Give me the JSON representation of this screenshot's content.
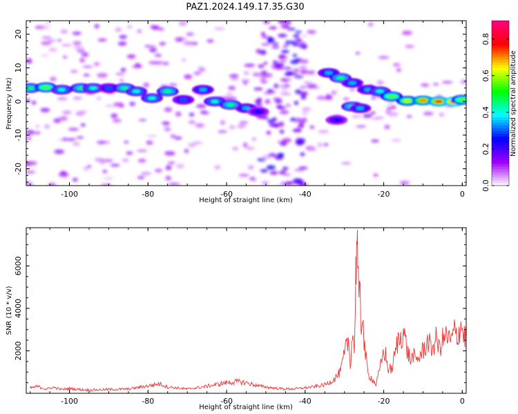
{
  "title": "PAZ1.2024.149.17.35.G30",
  "chart_data": [
    {
      "type": "heatmap",
      "title": "PAZ1.2024.149.17.35.G30",
      "xlabel": "Height of straight line (km)",
      "ylabel": "Frequency (Hz)",
      "xlim": [
        -111,
        1
      ],
      "ylim": [
        -25,
        24
      ],
      "xticks": [
        -100,
        -80,
        -60,
        -40,
        -20,
        0
      ],
      "yticks": [
        -20,
        -10,
        0,
        10,
        20
      ],
      "colorbar": {
        "label": "Normalized spectral amplitude",
        "range": [
          0.0,
          0.9
        ],
        "ticks": [
          0.0,
          0.2,
          0.4,
          0.6,
          0.8
        ],
        "colors": [
          "#ffffff",
          "#a000ff",
          "#0000ff",
          "#00ffff",
          "#00ff00",
          "#ffff00",
          "#ff0000",
          "#ff0080"
        ]
      },
      "ridge": [
        {
          "x": -110,
          "freq": 4.0,
          "amp": 0.45
        },
        {
          "x": -106,
          "freq": 4.2,
          "amp": 0.55
        },
        {
          "x": -102,
          "freq": 3.5,
          "amp": 0.4
        },
        {
          "x": -97,
          "freq": 4.0,
          "amp": 0.45
        },
        {
          "x": -94,
          "freq": 4.0,
          "amp": 0.4
        },
        {
          "x": -90,
          "freq": 4.0,
          "amp": 0.3
        },
        {
          "x": -86,
          "freq": 4.0,
          "amp": 0.45
        },
        {
          "x": -83,
          "freq": 3.0,
          "amp": 0.4
        },
        {
          "x": -79,
          "freq": 1.0,
          "amp": 0.4
        },
        {
          "x": -75,
          "freq": 3.0,
          "amp": 0.45
        },
        {
          "x": -71,
          "freq": 0.5,
          "amp": 0.3
        },
        {
          "x": -66,
          "freq": 3.5,
          "amp": 0.35
        },
        {
          "x": -63,
          "freq": 0.0,
          "amp": 0.4
        },
        {
          "x": -59,
          "freq": -1.0,
          "amp": 0.45
        },
        {
          "x": -55,
          "freq": -2.0,
          "amp": 0.35
        },
        {
          "x": -52,
          "freq": -3.0,
          "amp": 0.25
        },
        {
          "x": -34,
          "freq": 8.5,
          "amp": 0.35
        },
        {
          "x": -31,
          "freq": 7.0,
          "amp": 0.45
        },
        {
          "x": -28,
          "freq": 5.5,
          "amp": 0.35
        },
        {
          "x": -24,
          "freq": 3.5,
          "amp": 0.35
        },
        {
          "x": -21,
          "freq": 3.0,
          "amp": 0.4
        },
        {
          "x": -18,
          "freq": 1.5,
          "amp": 0.55
        },
        {
          "x": -14,
          "freq": 0.2,
          "amp": 0.6
        },
        {
          "x": -10,
          "freq": 0.3,
          "amp": 0.7
        },
        {
          "x": -6,
          "freq": 0.0,
          "amp": 0.75
        },
        {
          "x": -2,
          "freq": 0.0,
          "amp": 0.8
        },
        {
          "x": 0,
          "freq": 0.5,
          "amp": 0.55
        }
      ],
      "branch": [
        {
          "x": -28,
          "freq": -1.5,
          "amp": 0.45
        },
        {
          "x": -26,
          "freq": -2.0,
          "amp": 0.35
        },
        {
          "x": -32,
          "freq": -5.5,
          "amp": 0.25
        }
      ]
    },
    {
      "type": "line",
      "xlabel": "Height of straight line (km)",
      "ylabel": "SNR (10 * v/v)",
      "xlim": [
        -111,
        1
      ],
      "ylim": [
        0,
        7800
      ],
      "xticks": [
        -100,
        -80,
        -60,
        -40,
        -20,
        0
      ],
      "yticks": [
        2000,
        4000,
        6000
      ],
      "color": "#ee3333",
      "series": [
        {
          "points": [
            [
              -110,
              250
            ],
            [
              -108,
              320
            ],
            [
              -106,
              200
            ],
            [
              -104,
              280
            ],
            [
              -102,
              180
            ],
            [
              -100,
              220
            ],
            [
              -95,
              150
            ],
            [
              -90,
              180
            ],
            [
              -85,
              200
            ],
            [
              -80,
              350
            ],
            [
              -77,
              450
            ],
            [
              -75,
              300
            ],
            [
              -70,
              200
            ],
            [
              -66,
              300
            ],
            [
              -63,
              400
            ],
            [
              -60,
              500
            ],
            [
              -57,
              550
            ],
            [
              -55,
              500
            ],
            [
              -52,
              350
            ],
            [
              -48,
              250
            ],
            [
              -45,
              200
            ],
            [
              -42,
              220
            ],
            [
              -38,
              300
            ],
            [
              -35,
              400
            ],
            [
              -33,
              600
            ],
            [
              -31,
              1000
            ],
            [
              -30,
              1800
            ],
            [
              -29,
              2500
            ],
            [
              -28.5,
              1300
            ],
            [
              -28,
              3000
            ],
            [
              -27.5,
              2000
            ],
            [
              -27.2,
              4500
            ],
            [
              -27,
              6500
            ],
            [
              -26.8,
              7800
            ],
            [
              -26.6,
              5800
            ],
            [
              -26.3,
              3800
            ],
            [
              -26,
              4900
            ],
            [
              -25.7,
              2900
            ],
            [
              -25.4,
              4300
            ],
            [
              -25,
              2300
            ],
            [
              -24.5,
              1600
            ],
            [
              -24,
              900
            ],
            [
              -23,
              700
            ],
            [
              -22,
              400
            ],
            [
              -21,
              1100
            ],
            [
              -20,
              2000
            ],
            [
              -19.5,
              1800
            ],
            [
              -19,
              1200
            ],
            [
              -18,
              1100
            ],
            [
              -17.5,
              1500
            ],
            [
              -16.5,
              2400
            ],
            [
              -15.5,
              2700
            ],
            [
              -15,
              3000
            ],
            [
              -14.5,
              2500
            ],
            [
              -14,
              2000
            ],
            [
              -13,
              1500
            ],
            [
              -12.5,
              1900
            ],
            [
              -12,
              1500
            ],
            [
              -11,
              1700
            ],
            [
              -10,
              2000
            ],
            [
              -9.5,
              2200
            ],
            [
              -8.5,
              2500
            ],
            [
              -8,
              2000
            ],
            [
              -7,
              2400
            ],
            [
              -6.5,
              2600
            ],
            [
              -6,
              2100
            ],
            [
              -5,
              2500
            ],
            [
              -4,
              2700
            ],
            [
              -3,
              2400
            ],
            [
              -2,
              2900
            ],
            [
              -1,
              2700
            ],
            [
              -0.5,
              3300
            ],
            [
              0,
              3000
            ],
            [
              0.5,
              2700
            ],
            [
              1,
              2600
            ]
          ]
        }
      ]
    }
  ]
}
